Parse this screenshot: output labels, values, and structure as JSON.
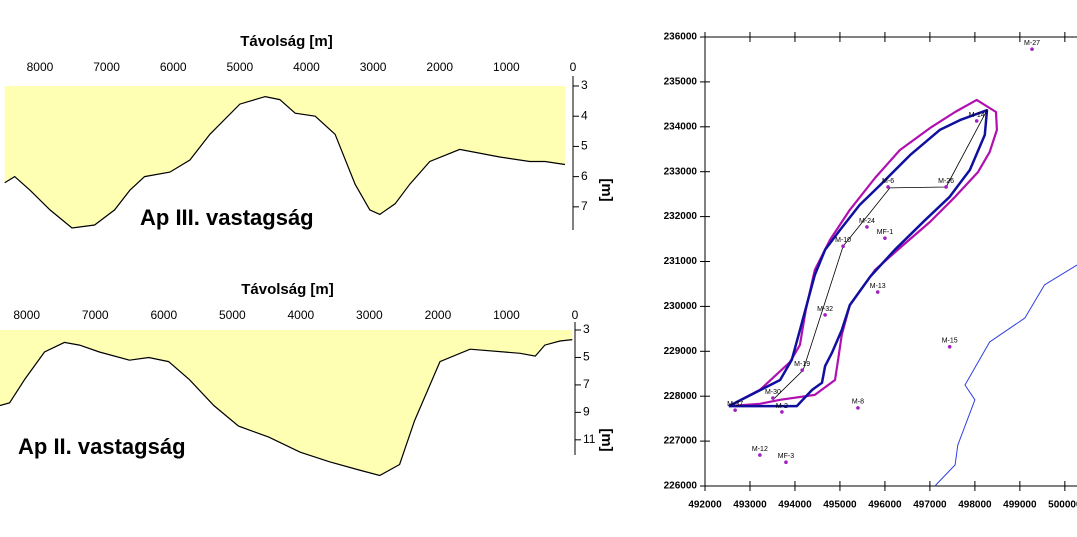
{
  "chart_data": [
    {
      "type": "area",
      "xlabel": "Távolság [m]",
      "ylabel": "[m]",
      "annotation": "Ap III. vastagság",
      "color": "#ffffb3",
      "line_color": "#000000",
      "x": [
        8530,
        8380,
        8150,
        7850,
        7520,
        7180,
        6880,
        6650,
        6430,
        6050,
        5750,
        5450,
        5000,
        4620,
        4400,
        4170,
        3870,
        3570,
        3270,
        3050,
        2900,
        2670,
        2450,
        2150,
        1700,
        1100,
        650,
        420,
        120
      ],
      "values": [
        6.2,
        6.0,
        6.45,
        7.1,
        7.7,
        7.6,
        7.1,
        6.45,
        6.0,
        5.85,
        5.45,
        4.6,
        3.6,
        3.35,
        3.45,
        3.9,
        4.0,
        4.6,
        6.25,
        7.1,
        7.25,
        6.9,
        6.25,
        5.5,
        5.1,
        5.35,
        5.5,
        5.5,
        5.6
      ],
      "xlim": [
        8600,
        0
      ],
      "xticks": [
        8000,
        7000,
        6000,
        5000,
        4000,
        3000,
        2000,
        1000,
        0
      ],
      "ylim": [
        3,
        7.8
      ],
      "yticks": [
        3,
        4,
        5,
        6,
        7
      ]
    },
    {
      "type": "area",
      "xlabel": "Távolság [m]",
      "ylabel": "[m]",
      "annotation": "Ap II. vastagság",
      "color": "#ffffb3",
      "line_color": "#000000",
      "x": [
        8390,
        8250,
        8030,
        7740,
        7450,
        7230,
        6940,
        6500,
        6220,
        5930,
        5630,
        5270,
        4910,
        4470,
        4010,
        3580,
        3150,
        2850,
        2560,
        2340,
        1970,
        1530,
        800,
        580,
        440,
        220,
        40
      ],
      "values": [
        8.5,
        8.3,
        6.6,
        4.6,
        3.9,
        4.1,
        4.6,
        5.2,
        5.0,
        5.3,
        6.6,
        8.5,
        10.0,
        10.8,
        11.9,
        12.6,
        13.2,
        13.6,
        12.8,
        9.6,
        5.3,
        4.4,
        4.7,
        4.9,
        4.1,
        3.8,
        3.7
      ],
      "xlim": [
        8390,
        0
      ],
      "xticks": [
        8000,
        7000,
        6000,
        5000,
        4000,
        3000,
        2000,
        1000,
        0
      ],
      "ylim": [
        3,
        14
      ],
      "yticks": [
        3,
        5,
        7,
        9,
        11
      ]
    },
    {
      "type": "map",
      "points": {
        "color": "#a020c0",
        "labels": [
          "M-27",
          "M-14",
          "M-6",
          "M-26",
          "M-24",
          "MF-1",
          "M-10",
          "M-13",
          "M-32",
          "M-15",
          "M-19",
          "M-30",
          "M-2",
          "M-37",
          "M-8",
          "M-12",
          "MF-3"
        ],
        "x": [
          499270,
          498040,
          496070,
          497360,
          495600,
          496000,
          495070,
          495840,
          494670,
          497440,
          494160,
          493510,
          493710,
          492670,
          495400,
          493220,
          493800
        ],
        "y": [
          235730,
          234130,
          232660,
          232660,
          231770,
          231520,
          231340,
          230320,
          229810,
          229100,
          228580,
          227960,
          227650,
          227690,
          227740,
          226690,
          226530
        ]
      },
      "lines": [
        {
          "color": "#b010b0",
          "width": 2.2,
          "x": [
            492530,
            493220,
            493670,
            494440,
            494890,
            494960,
            495040,
            495220,
            495780,
            496330,
            497000,
            497560,
            498070,
            498330,
            498490,
            498470,
            498040,
            497560,
            497000,
            496330,
            495780,
            495220,
            494780,
            494440,
            494240,
            494110,
            493890,
            493220,
            492530
          ],
          "y": [
            227780,
            227830,
            227920,
            228030,
            228360,
            228810,
            229360,
            230030,
            230810,
            231300,
            231880,
            232440,
            232990,
            233440,
            233930,
            234330,
            234600,
            234330,
            233970,
            233480,
            232860,
            232150,
            231480,
            230810,
            229920,
            229140,
            228760,
            228140,
            227780
          ]
        },
        {
          "color": "#1010a0",
          "width": 2.5,
          "x": [
            492530,
            494040,
            494380,
            494600,
            494670,
            494820,
            495040,
            495220,
            495670,
            496220,
            496890,
            497440,
            497890,
            498220,
            498270,
            497670,
            497220,
            496560,
            495890,
            495440,
            495000,
            494670,
            494440,
            494290,
            494110,
            493930,
            493670,
            492530
          ],
          "y": [
            227780,
            227780,
            228140,
            228300,
            228670,
            228960,
            229470,
            230030,
            230660,
            231260,
            231920,
            232440,
            233040,
            233820,
            234370,
            234150,
            233930,
            233370,
            232700,
            232260,
            231700,
            231260,
            230700,
            230140,
            229470,
            228810,
            228360,
            227780
          ]
        },
        {
          "color": "#000000",
          "width": 0.8,
          "x": [
            498270,
            497360,
            496110,
            495070,
            494180,
            493510
          ],
          "y": [
            234370,
            232660,
            232640,
            231340,
            228580,
            227920
          ]
        },
        {
          "color": "#3040e0",
          "width": 1,
          "x": [
            500270,
            499550,
            499110,
            498330,
            497780,
            498000,
            497620,
            497560,
            497110
          ],
          "y": [
            230920,
            230480,
            229740,
            229210,
            228250,
            227920,
            226910,
            226470,
            226000
          ]
        }
      ],
      "xlim": [
        492000,
        500270
      ],
      "xticks": [
        492000,
        493000,
        494000,
        495000,
        496000,
        497000,
        498000,
        499000,
        500000
      ],
      "ylim": [
        226000,
        236000
      ],
      "yticks": [
        226000,
        227000,
        228000,
        229000,
        230000,
        231000,
        232000,
        233000,
        234000,
        235000,
        236000
      ]
    }
  ]
}
